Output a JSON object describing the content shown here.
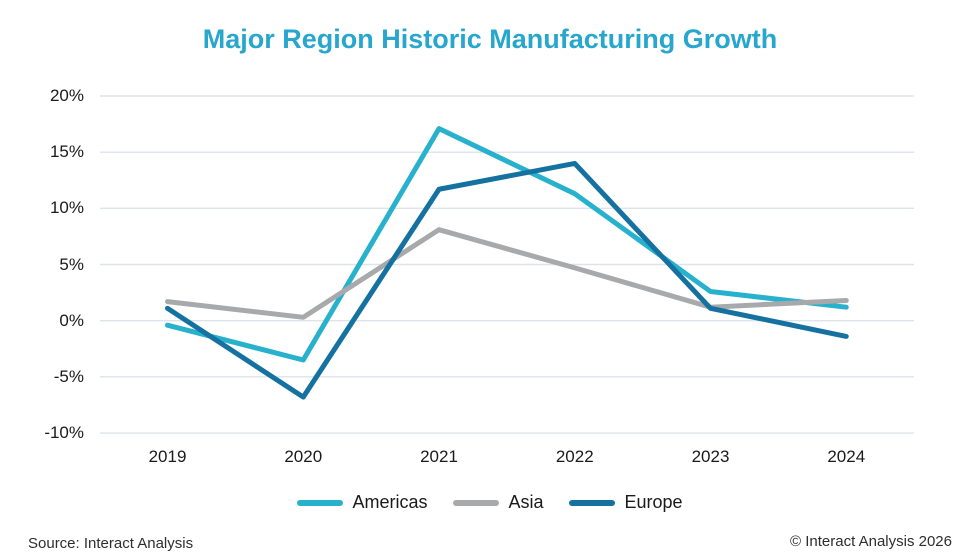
{
  "chart_data": {
    "type": "line",
    "title": "Major Region Historic Manufacturing Growth",
    "categories": [
      "2019",
      "2020",
      "2021",
      "2022",
      "2023",
      "2024"
    ],
    "series": [
      {
        "name": "Americas",
        "color": "#27b1cd",
        "values": [
          -0.4,
          -3.5,
          17.1,
          11.3,
          2.6,
          1.2
        ]
      },
      {
        "name": "Asia",
        "color": "#a8a9ab",
        "values": [
          1.7,
          0.3,
          8.1,
          4.7,
          1.2,
          1.8
        ]
      },
      {
        "name": "Europe",
        "color": "#1471a0",
        "values": [
          1.1,
          -6.8,
          11.7,
          14.0,
          1.1,
          -1.4
        ]
      }
    ],
    "ylim": [
      -10,
      20
    ],
    "ytick_labels": [
      "20%",
      "15%",
      "10%",
      "5%",
      "0%",
      "-5%",
      "-10%"
    ],
    "ytick_values": [
      20,
      15,
      10,
      5,
      0,
      -5,
      -10
    ],
    "grid": "horizontal",
    "legend_position": "bottom",
    "grid_color": "#dde3eb",
    "line_width": 5
  },
  "footer": {
    "source": "Source: Interact Analysis",
    "copyright": "© Interact Analysis 2026"
  }
}
